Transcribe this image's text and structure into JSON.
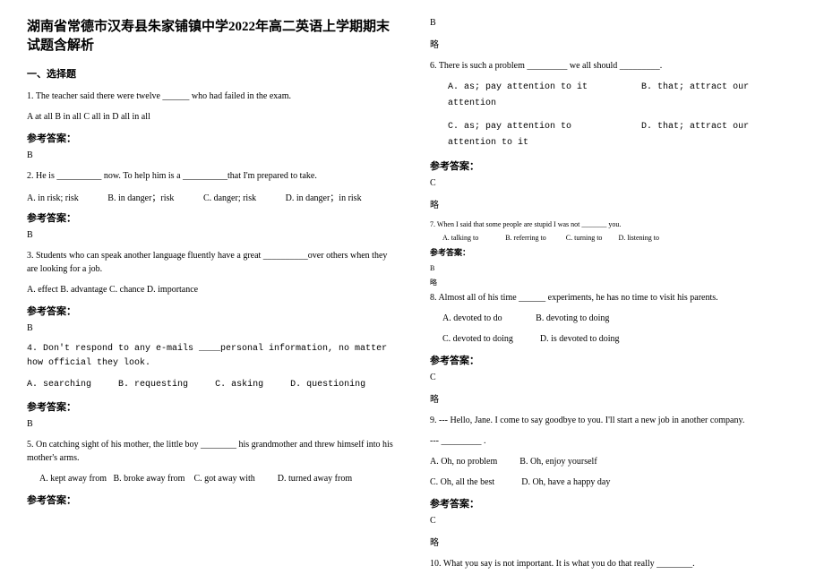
{
  "title": "湖南省常德市汉寿县朱家铺镇中学2022年高二英语上学期期末试题含解析",
  "section1": "一、选择题",
  "q1": {
    "text": "1. The teacher said there were twelve ______ who had failed in the exam.",
    "opts": "A  at all    B  in all    C  all in   D  all in all"
  },
  "answer_label": "参考答案：",
  "a1": "B",
  "q2": {
    "text": "2. He is __________ now. To help him is a __________that I'm prepared to take.",
    "a": "A. in risk;  risk",
    "b": "B. in danger；risk",
    "c": "C. danger; risk",
    "d": "D. in danger；in risk"
  },
  "a2": "B",
  "q3": {
    "text": "3. Students who can speak another language fluently have a great __________over others when they are looking for a job.",
    "opts": "A. effect    B. advantage   C. chance   D. importance"
  },
  "a3": "B",
  "q4": {
    "text": "4. Don't respond to any e-mails ____personal information, no matter how official they look.",
    "a": "A. searching",
    "b": "B. requesting",
    "c": "C. asking",
    "d": "D. questioning"
  },
  "a4": "B",
  "q5": {
    "text": "5. On catching sight of his mother, the little boy ________ his grandmother and threw himself into his mother's arms.",
    "a": "A. kept away from",
    "b": "B. broke away from",
    "c": "C. got away with",
    "d": "D. turned away from"
  },
  "a5": "B",
  "omit": "略",
  "q6": {
    "text": "6. There is such a problem _________ we all should _________.",
    "a": "A. as; pay attention to it",
    "b": "B. that; attract our attention",
    "c": "C. as; pay attention to",
    "d": "D. that; attract our attention to it"
  },
  "a6": "C",
  "q7": {
    "text": "7. When I said that some people are stupid I was not _______ you.",
    "a": "A. talking to",
    "b": "B. referring to",
    "c": "C. turning to",
    "d": "D. listening to"
  },
  "a7": "B",
  "q8": {
    "text": "8. Almost all of his time ______ experiments, he has no time to visit his parents.",
    "a": "A. devoted to do",
    "b": "B. devoting to doing",
    "c": "C. devoted to doing",
    "d": "D. is devoted to doing"
  },
  "a8": "C",
  "q9": {
    "text1": "9. --- Hello, Jane. I come to say goodbye to you. I'll start a new job in another company.",
    "text2": "--- _________ .",
    "a": "A. Oh, no problem",
    "b": "B. Oh, enjoy yourself",
    "c": "C. Oh, all the best",
    "d": "D. Oh, have a happy day"
  },
  "a9": "C",
  "q10": {
    "text": "10. What you say is not important. It is what you do that really ________."
  }
}
